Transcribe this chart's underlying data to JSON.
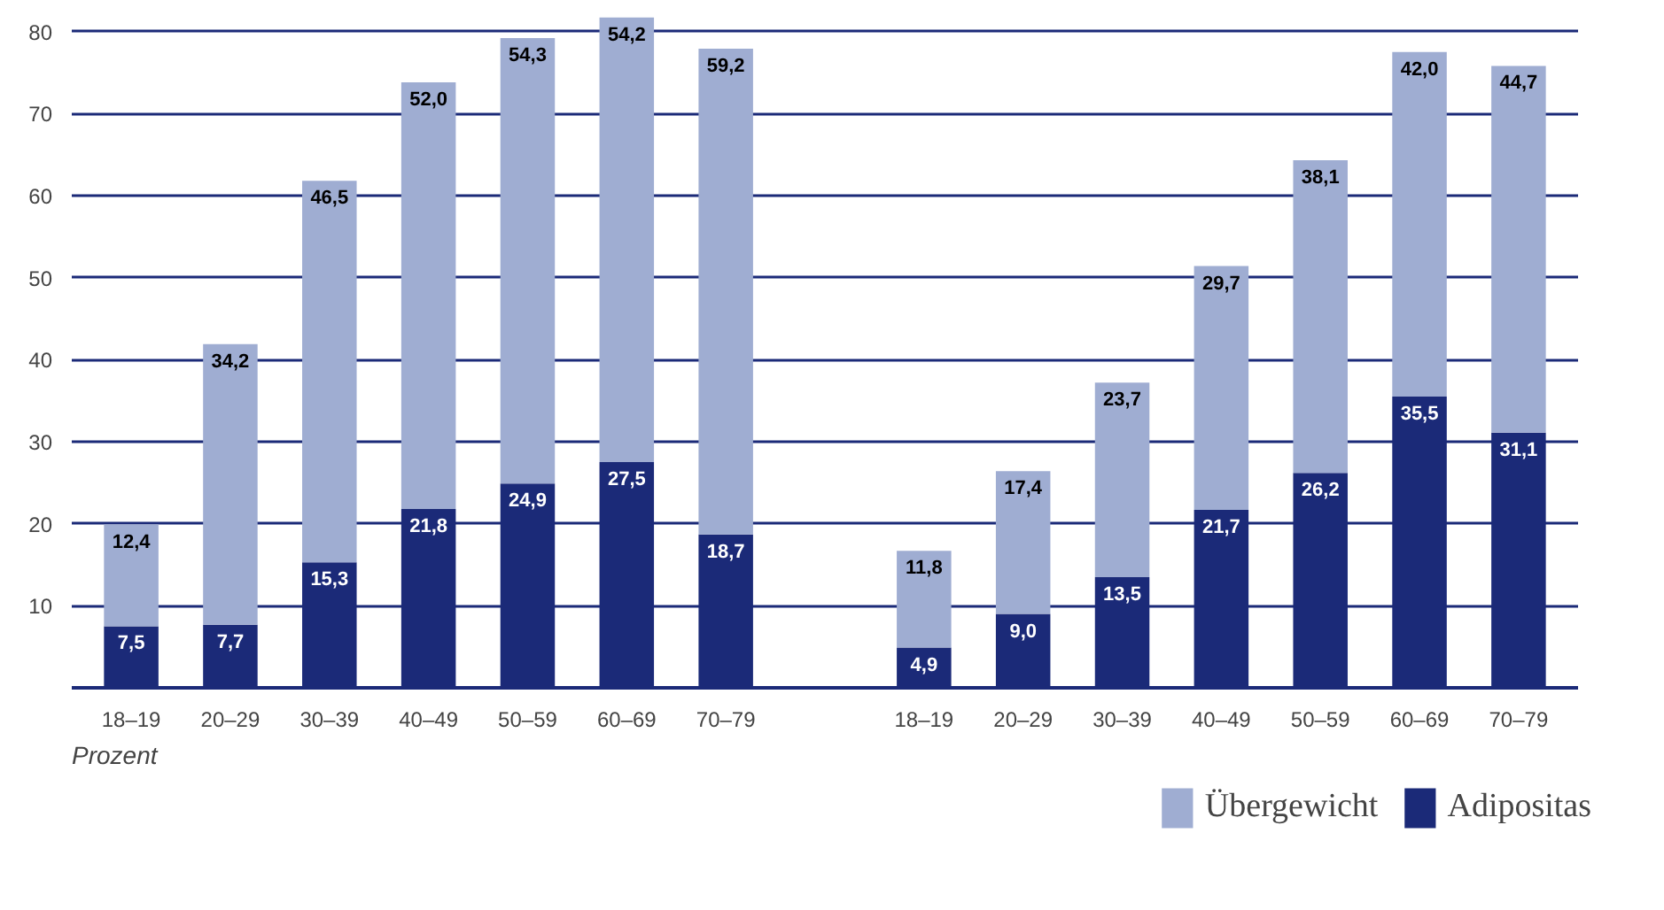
{
  "chart_data": {
    "type": "bar",
    "stacked": true,
    "categories": [
      "18–19",
      "20–29",
      "30–39",
      "40–49",
      "50–59",
      "60–69",
      "70–79",
      null,
      "18–19",
      "20–29",
      "30–39",
      "40–49",
      "50–59",
      "60–69",
      "70–79"
    ],
    "series": [
      {
        "name": "Adipositas",
        "color": "#1b2a78",
        "values": [
          7.5,
          7.7,
          15.3,
          21.8,
          24.9,
          27.5,
          18.7,
          null,
          4.9,
          9.0,
          13.5,
          21.7,
          26.2,
          35.5,
          31.1
        ],
        "value_labels": [
          "7,5",
          "7,7",
          "15,3",
          "21,8",
          "24,9",
          "27,5",
          "18,7",
          null,
          "4,9",
          "9,0",
          "13,5",
          "21,7",
          "26,2",
          "35,5",
          "31,1"
        ]
      },
      {
        "name": "Übergewicht",
        "color": "#9fadd2",
        "values": [
          12.4,
          34.2,
          46.5,
          52.0,
          54.3,
          54.2,
          59.2,
          null,
          11.8,
          17.4,
          23.7,
          29.7,
          38.1,
          42.0,
          44.7
        ],
        "value_labels": [
          "12,4",
          "34,2",
          "46,5",
          "52,0",
          "54,3",
          "54,2",
          "59,2",
          null,
          "11,8",
          "17,4",
          "23,7",
          "29,7",
          "38,1",
          "42,0",
          "44,7"
        ]
      }
    ],
    "ylim": [
      0,
      82
    ],
    "yticks": [
      10,
      20,
      30,
      40,
      50,
      60,
      70,
      80
    ],
    "grid": "y",
    "legend": "bottom right",
    "annotations": [
      "Prozent"
    ]
  }
}
